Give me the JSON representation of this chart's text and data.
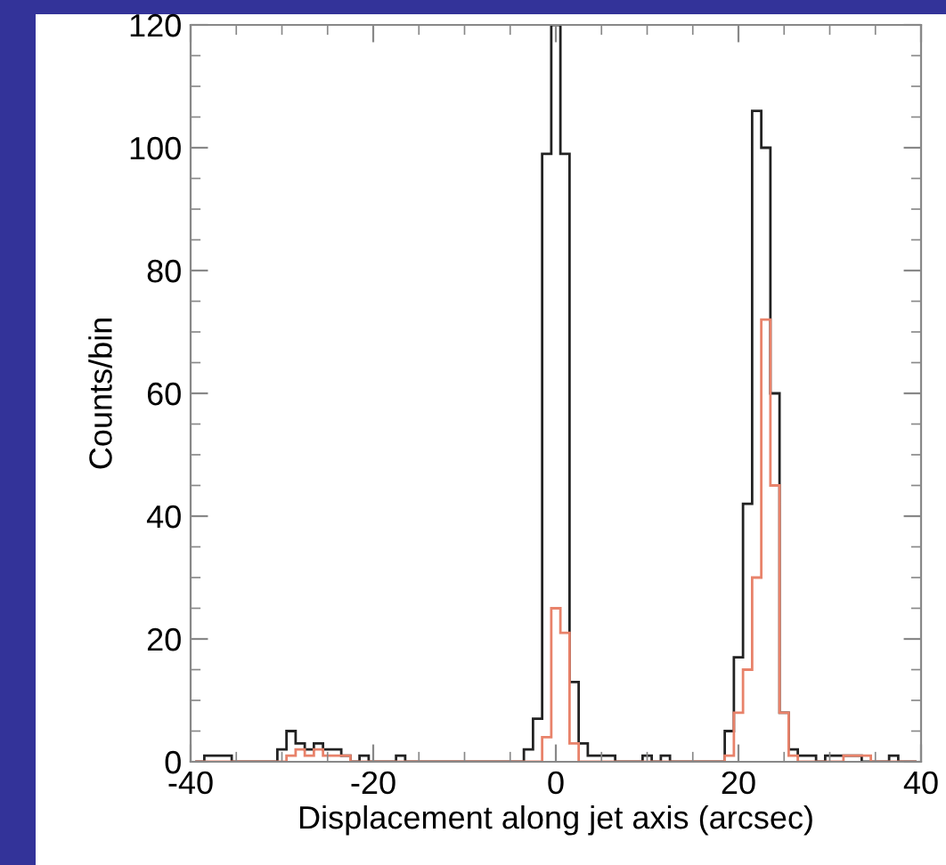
{
  "chart_data": {
    "type": "histogram",
    "xlabel": "Displacement along jet axis (arcsec)",
    "ylabel": "Counts/bin",
    "bins": [
      -39.5,
      -38.5,
      -37.5,
      -36.5,
      -35.5,
      -34.5,
      -33.5,
      -32.5,
      -31.5,
      -30.5,
      -29.5,
      -28.5,
      -27.5,
      -26.5,
      -25.5,
      -24.5,
      -23.5,
      -22.5,
      -21.5,
      -20.5,
      -19.5,
      -18.5,
      -17.5,
      -16.5,
      -15.5,
      -14.5,
      -13.5,
      -12.5,
      -11.5,
      -10.5,
      -9.5,
      -8.5,
      -7.5,
      -6.5,
      -5.5,
      -4.5,
      -3.5,
      -2.5,
      -1.5,
      -0.5,
      0.5,
      1.5,
      2.5,
      3.5,
      4.5,
      5.5,
      6.5,
      7.5,
      8.5,
      9.5,
      10.5,
      11.5,
      12.5,
      13.5,
      14.5,
      15.5,
      16.5,
      17.5,
      18.5,
      19.5,
      20.5,
      21.5,
      22.5,
      23.5,
      24.5,
      25.5,
      26.5,
      27.5,
      28.5,
      29.5,
      30.5,
      31.5,
      32.5,
      33.5,
      34.5,
      35.5,
      36.5,
      37.5,
      38.5,
      39.5
    ],
    "series": [
      {
        "color": "#222222",
        "values": [
          0,
          1,
          1,
          1,
          0,
          0,
          0,
          0,
          0,
          2,
          5,
          3,
          2,
          3,
          2,
          2,
          1,
          0,
          1,
          0,
          0,
          0,
          1,
          0,
          0,
          0,
          0,
          0,
          0,
          0,
          0,
          0,
          0,
          0,
          0,
          0,
          2,
          7,
          99,
          120,
          99,
          13,
          3,
          1,
          1,
          1,
          0,
          0,
          0,
          1,
          0,
          1,
          0,
          0,
          0,
          0,
          0,
          0,
          5,
          17,
          42,
          106,
          100,
          60,
          8,
          2,
          1,
          1,
          0,
          1,
          1,
          1,
          1,
          0,
          0,
          0,
          1,
          0,
          0
        ]
      },
      {
        "color": "#e8826a",
        "values": [
          0,
          0,
          0,
          0,
          0,
          0,
          0,
          0,
          0,
          0,
          1,
          2,
          1,
          2,
          1,
          1,
          1,
          0,
          0,
          0,
          0,
          0,
          0,
          0,
          0,
          0,
          0,
          0,
          0,
          0,
          0,
          0,
          0,
          0,
          0,
          0,
          0,
          0,
          4,
          25,
          21,
          3,
          0,
          0,
          0,
          0,
          0,
          0,
          0,
          0,
          0,
          0,
          0,
          0,
          0,
          0,
          0,
          0,
          1,
          8,
          15,
          30,
          72,
          45,
          8,
          1,
          0,
          0,
          0,
          0,
          0,
          1,
          1,
          1,
          0,
          0,
          0,
          0,
          0
        ]
      }
    ],
    "xlim": [
      -40,
      40
    ],
    "xticks": [
      -40,
      -20,
      0,
      20,
      40
    ],
    "ylim": [
      0,
      120
    ],
    "yticks": [
      0,
      20,
      40,
      60,
      80,
      100,
      120
    ],
    "grid": false,
    "legend": false
  }
}
